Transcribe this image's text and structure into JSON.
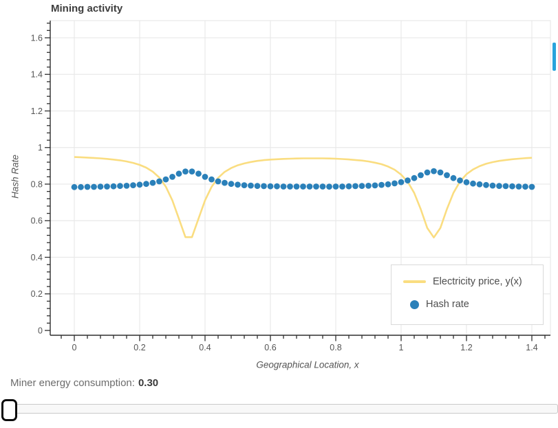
{
  "chart_data": {
    "type": "line+scatter",
    "title": "Mining activity",
    "xlabel": "Geographical Location, x",
    "ylabel": "Hash Rate",
    "xlim": [
      -0.074,
      1.457
    ],
    "ylim": [
      -0.027,
      1.686
    ],
    "x_ticks": [
      0,
      0.2,
      0.4,
      0.6,
      0.8,
      1,
      1.2,
      1.4
    ],
    "y_ticks": [
      0,
      0.2,
      0.4,
      0.6,
      0.8,
      1,
      1.2,
      1.4,
      1.6
    ],
    "minor_tick_step": 0.04,
    "grid": true,
    "legend_position": "lower-right",
    "x": [
      0,
      0.02,
      0.04,
      0.06,
      0.08,
      0.1,
      0.12,
      0.14,
      0.16,
      0.18,
      0.2,
      0.22,
      0.24,
      0.26,
      0.28,
      0.3,
      0.32,
      0.34,
      0.36,
      0.38,
      0.4,
      0.42,
      0.44,
      0.46,
      0.48,
      0.5,
      0.52,
      0.54,
      0.56,
      0.58,
      0.6,
      0.62,
      0.64,
      0.66,
      0.68,
      0.7,
      0.72,
      0.74,
      0.76,
      0.78,
      0.8,
      0.82,
      0.84,
      0.86,
      0.88,
      0.9,
      0.92,
      0.94,
      0.96,
      0.98,
      1,
      1.02,
      1.04,
      1.06,
      1.08,
      1.1,
      1.12,
      1.14,
      1.16,
      1.18,
      1.2,
      1.22,
      1.24,
      1.26,
      1.28,
      1.3,
      1.32,
      1.34,
      1.36,
      1.38,
      1.4
    ],
    "series": [
      {
        "name": "Electricity price, y(x)",
        "type": "line",
        "color": "#fadd80",
        "y": [
          0.948,
          0.947,
          0.945,
          0.943,
          0.941,
          0.938,
          0.934,
          0.93,
          0.924,
          0.916,
          0.905,
          0.89,
          0.868,
          0.836,
          0.786,
          0.711,
          0.611,
          0.51,
          0.51,
          0.611,
          0.711,
          0.785,
          0.834,
          0.867,
          0.888,
          0.903,
          0.913,
          0.921,
          0.927,
          0.931,
          0.934,
          0.936,
          0.938,
          0.939,
          0.94,
          0.941,
          0.941,
          0.941,
          0.941,
          0.94,
          0.939,
          0.937,
          0.935,
          0.932,
          0.929,
          0.924,
          0.917,
          0.909,
          0.896,
          0.879,
          0.852,
          0.813,
          0.752,
          0.663,
          0.56,
          0.508,
          0.56,
          0.663,
          0.752,
          0.814,
          0.854,
          0.88,
          0.898,
          0.911,
          0.92,
          0.927,
          0.932,
          0.936,
          0.939,
          0.942,
          0.944
        ]
      },
      {
        "name": "Hash rate",
        "type": "scatter",
        "color": "#2a80b9",
        "y": [
          0.784,
          0.784,
          0.785,
          0.785,
          0.786,
          0.787,
          0.788,
          0.79,
          0.791,
          0.794,
          0.797,
          0.801,
          0.807,
          0.815,
          0.826,
          0.84,
          0.857,
          0.869,
          0.869,
          0.857,
          0.84,
          0.826,
          0.815,
          0.807,
          0.801,
          0.797,
          0.794,
          0.792,
          0.79,
          0.789,
          0.788,
          0.788,
          0.787,
          0.787,
          0.787,
          0.787,
          0.787,
          0.787,
          0.787,
          0.786,
          0.787,
          0.787,
          0.788,
          0.789,
          0.79,
          0.791,
          0.793,
          0.796,
          0.799,
          0.804,
          0.811,
          0.82,
          0.833,
          0.849,
          0.864,
          0.871,
          0.864,
          0.849,
          0.833,
          0.82,
          0.81,
          0.803,
          0.799,
          0.795,
          0.792,
          0.79,
          0.789,
          0.788,
          0.787,
          0.786,
          0.785
        ]
      }
    ]
  },
  "controls": {
    "readout_label": "Miner energy consumption:",
    "readout_value": "0.30",
    "slider_handle_position": "left"
  },
  "colors": {
    "grid": "#e9e9e9",
    "axis": "#2e2e2e",
    "tick_label": "#545454",
    "scroll_indicator": "#29a3dc"
  }
}
